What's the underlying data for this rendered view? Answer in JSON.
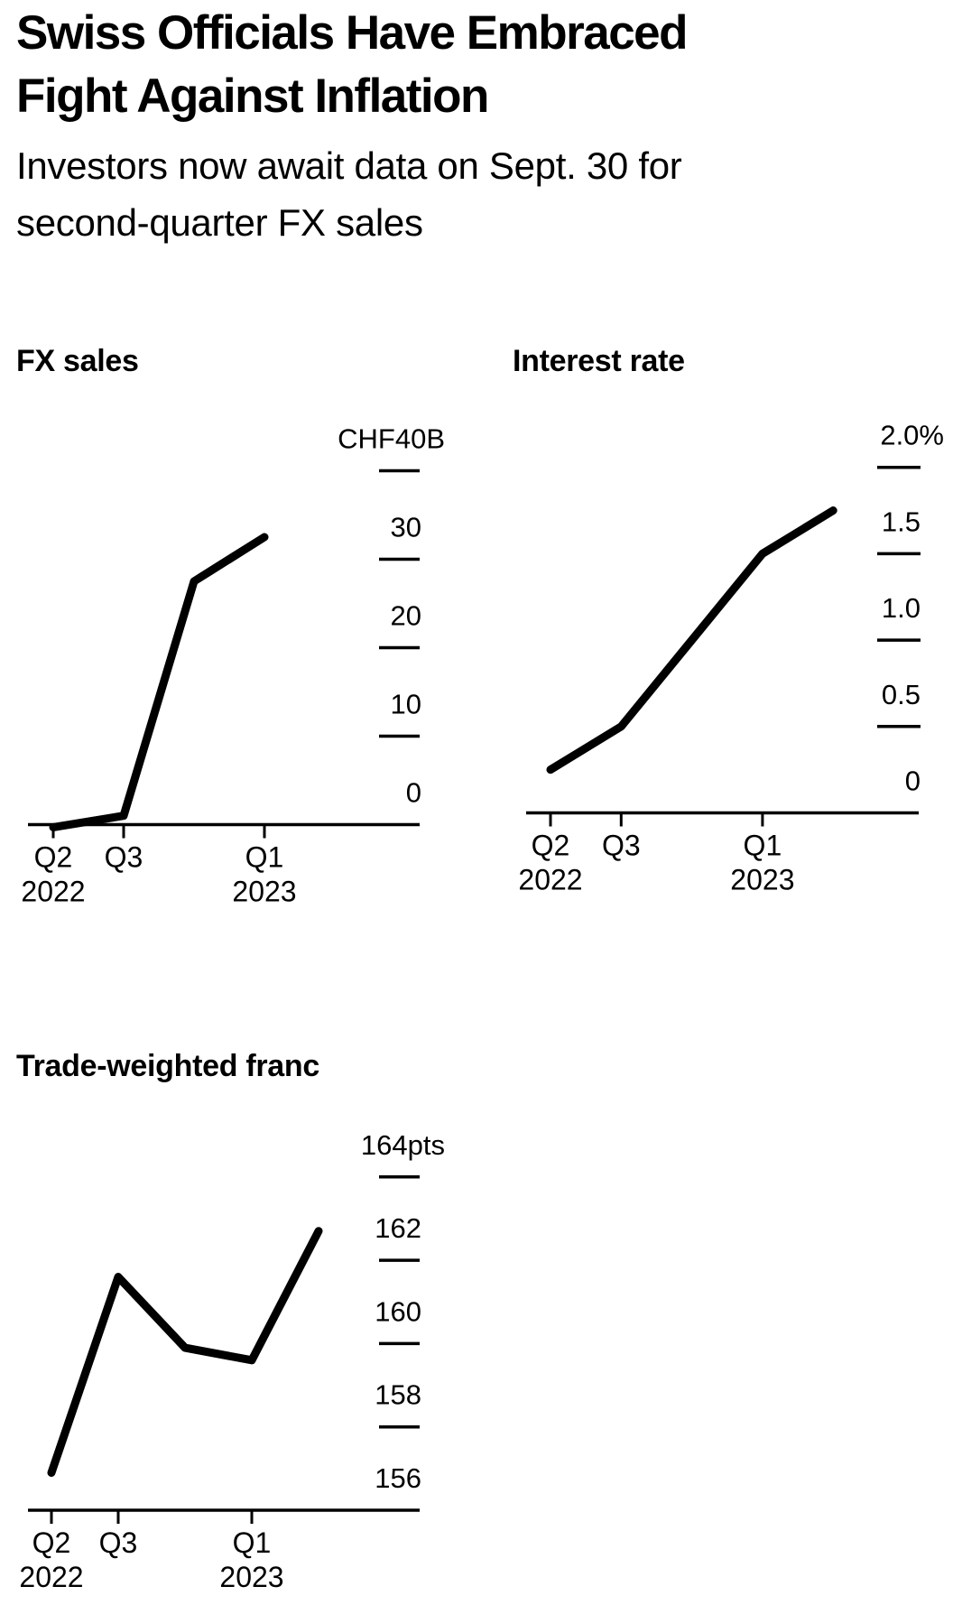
{
  "page": {
    "title_line1": "Swiss Officials Have Embraced",
    "title_line2": "Fight Against Inflation",
    "subtitle_line1": "Investors now await data on Sept. 30 for",
    "subtitle_line2": "second-quarter FX sales"
  },
  "chart_data": [
    {
      "id": "fx-sales",
      "type": "line",
      "title": "FX sales",
      "unit": "CHF billions",
      "x": [
        "Q2 2022",
        "Q3 2022",
        "Q4 2022",
        "Q1 2023"
      ],
      "values": [
        -0.3,
        1.0,
        27.5,
        32.5
      ],
      "ylim": [
        0,
        40
      ],
      "legend": "none",
      "y_axis_side": "right",
      "y_ticks": [
        {
          "label": "CHF40B",
          "value": 40,
          "is_unit_label": true
        },
        {
          "label": "30",
          "value": 30
        },
        {
          "label": "20",
          "value": 20
        },
        {
          "label": "10",
          "value": 10
        },
        {
          "label": "0",
          "value": 0
        }
      ],
      "x_ticks": [
        {
          "label": "Q2",
          "year": "2022",
          "quarter_index": 0
        },
        {
          "label": "Q3",
          "year": "",
          "quarter_index": 1
        },
        {
          "label": "Q1",
          "year": "2023",
          "quarter_index": 3
        }
      ]
    },
    {
      "id": "interest-rate",
      "type": "line",
      "title": "Interest rate",
      "unit": "percent",
      "x": [
        "Q2 2022",
        "Q3 2022",
        "Q4 2022",
        "Q1 2023",
        "Q2 2023"
      ],
      "values": [
        0.25,
        0.5,
        1.0,
        1.5,
        1.75
      ],
      "ylim": [
        0,
        2.0
      ],
      "legend": "none",
      "y_axis_side": "right",
      "y_ticks": [
        {
          "label": "2.0%",
          "value": 2.0,
          "is_unit_label": true
        },
        {
          "label": "1.5",
          "value": 1.5
        },
        {
          "label": "1.0",
          "value": 1.0
        },
        {
          "label": "0.5",
          "value": 0.5
        },
        {
          "label": "0",
          "value": 0
        }
      ],
      "x_ticks": [
        {
          "label": "Q2",
          "year": "2022",
          "quarter_index": 0
        },
        {
          "label": "Q3",
          "year": "",
          "quarter_index": 1
        },
        {
          "label": "Q1",
          "year": "2023",
          "quarter_index": 3
        }
      ]
    },
    {
      "id": "trade-weighted-franc",
      "type": "line",
      "title": "Trade-weighted franc",
      "unit": "index points",
      "x": [
        "Q2 2022",
        "Q3 2022",
        "Q4 2022",
        "Q1 2023",
        "Q2 2023"
      ],
      "values": [
        156.9,
        161.6,
        159.9,
        159.6,
        162.7
      ],
      "ylim": [
        156,
        164
      ],
      "legend": "none",
      "y_axis_side": "right",
      "y_ticks": [
        {
          "label": "164pts",
          "value": 164,
          "is_unit_label": true
        },
        {
          "label": "162",
          "value": 162
        },
        {
          "label": "160",
          "value": 160
        },
        {
          "label": "158",
          "value": 158
        },
        {
          "label": "156",
          "value": 156
        }
      ],
      "x_ticks": [
        {
          "label": "Q2",
          "year": "2022",
          "quarter_index": 0
        },
        {
          "label": "Q3",
          "year": "",
          "quarter_index": 1
        },
        {
          "label": "Q1",
          "year": "2023",
          "quarter_index": 3
        }
      ]
    }
  ],
  "colors": {
    "background": "#ffffff",
    "text": "#000000",
    "line": "#000000"
  }
}
